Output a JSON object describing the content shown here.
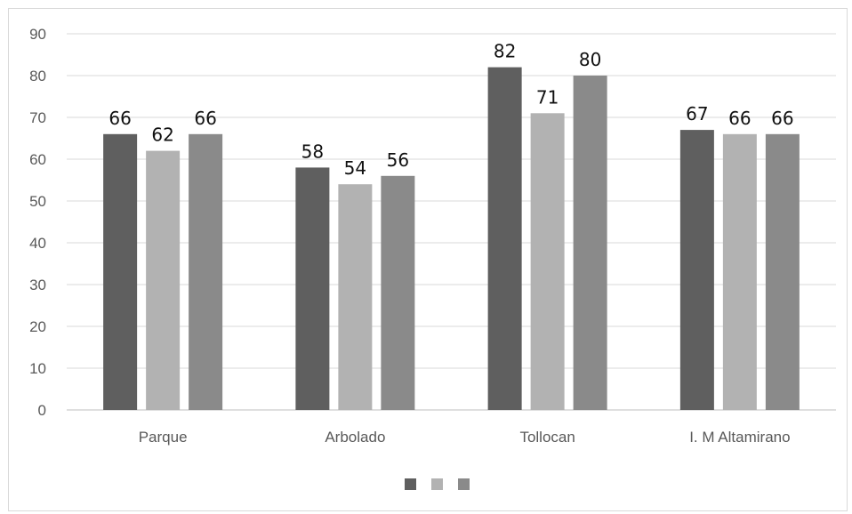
{
  "chart_data": {
    "type": "bar",
    "categories": [
      "Parque",
      "Arbolado",
      "Tollocan",
      "I. M Altamirano"
    ],
    "series": [
      {
        "values": [
          66,
          58,
          82,
          67
        ],
        "color": "#5f5f5f"
      },
      {
        "values": [
          62,
          54,
          71,
          66
        ],
        "color": "#b2b2b2"
      },
      {
        "values": [
          66,
          56,
          80,
          66
        ],
        "color": "#8a8a8a"
      }
    ],
    "ylim": [
      0,
      90
    ],
    "yticks": [
      "0",
      "10",
      "20",
      "30",
      "40",
      "50",
      "60",
      "70",
      "80",
      "90"
    ],
    "grid": true,
    "data_labels": true,
    "legend": "bottom",
    "xlabel": "",
    "ylabel": "",
    "title": ""
  }
}
